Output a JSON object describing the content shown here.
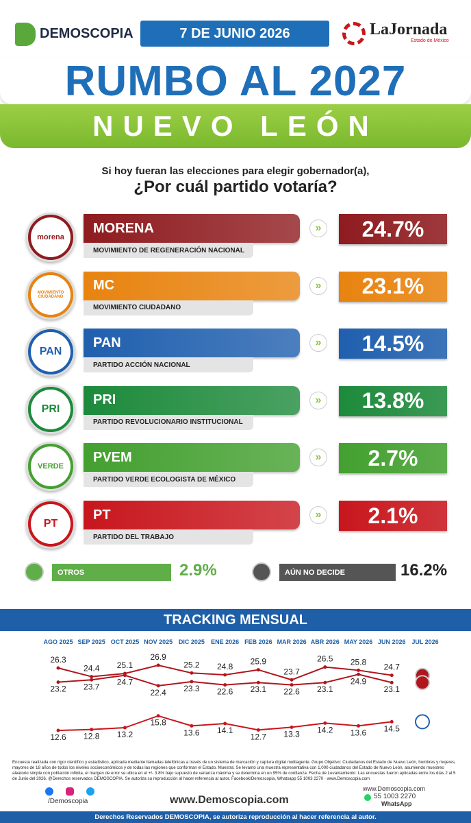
{
  "header": {
    "brand": "DEMOSCOPIA",
    "date": "7 DE JUNIO 2026",
    "partner": "LaJornada",
    "partner_sub": "Estado de México"
  },
  "title": "RUMBO AL 2027",
  "subtitle": "NUEVO LEÓN",
  "question": [
    "Si hoy fueran las elecciones para elegir gobernador(a),",
    "¿Por cuál partido votaría?"
  ],
  "parties": [
    {
      "logo": "morena",
      "name": "MORENA",
      "full_name": "MOVIMIENTO DE REGENERACIÓN NACIONAL",
      "result": "24.7%",
      "color": "#8e1b1f"
    },
    {
      "logo": "MOVIMIENTO CIUDADANO",
      "name": "MC",
      "full_name": "MOVIMIENTO CIUDADANO",
      "result": "23.1%",
      "color": "#e8830f"
    },
    {
      "logo": "PAN",
      "name": "PAN",
      "full_name": "PARTIDO ACCIÓN NACIONAL",
      "result": "14.5%",
      "color": "#1f5fae"
    },
    {
      "logo": "PRI",
      "name": "PRI",
      "full_name": "PARTIDO REVOLUCIONARIO INSTITUCIONAL",
      "result": "13.8%",
      "color": "#1d8a3b"
    },
    {
      "logo": "VERDE",
      "name": "PVEM",
      "full_name": "PARTIDO VERDE ECOLOGISTA DE MÉXICO",
      "result": "2.7%",
      "color": "#43a02f"
    },
    {
      "logo": "PT",
      "name": "PT",
      "full_name": "PARTIDO DEL TRABAJO",
      "result": "2.1%",
      "color": "#c8161d"
    }
  ],
  "others": [
    {
      "label": "OTROS",
      "result": "2.9%",
      "color": "#5fae48"
    },
    {
      "label": "AÚN NO DECIDE",
      "result": "16.2%",
      "color": "#555555"
    }
  ],
  "chart_data": {
    "type": "line",
    "title": "TRACKING MENSUAL",
    "categories": [
      "AGO 2025",
      "SEP 2025",
      "OCT 2025",
      "NOV 2025",
      "DIC 2025",
      "ENE 2026",
      "FEB 2026",
      "MAR 2026",
      "ABR 2026",
      "MAY 2026",
      "JUN 2026",
      "JUL 2026"
    ],
    "series": [
      {
        "color": "#b0161c",
        "values": [
          26.3,
          24.4,
          25.1,
          26.9,
          25.2,
          24.8,
          25.9,
          23.7,
          26.5,
          25.8,
          24.7,
          null
        ]
      },
      {
        "color": "#b0161c",
        "values": [
          23.2,
          23.7,
          24.7,
          22.4,
          23.3,
          22.6,
          23.1,
          22.6,
          23.1,
          24.9,
          23.1,
          null
        ]
      },
      {
        "color": "#c8161d",
        "values": [
          12.6,
          12.8,
          13.2,
          15.8,
          13.6,
          14.1,
          12.7,
          13.3,
          14.2,
          13.6,
          14.5,
          null
        ]
      }
    ]
  },
  "footer": {
    "methodology": "Encuesta realizada con rigor científico y estadístico, aplicada mediante llamadas telefónicas a través de un sistema de marcación y captura digital multiagente. Grupo Objetivo: Ciudadanos del Estado de Nuevo León, hombres y mujeres, mayores de 18 años de todos los niveles socioeconómicos y de todas las regiones que conforman el Estado. Muestra: Se levantó una muestra representativa con 1,000 ciudadanos del Estado de Nuevo León, asumiendo muestreo aleatorio simple con población infinita, el margen de error se ubica en el +/- 3.8% bajo supuesto de varianza máxima y se determina en un 95% de confianza. Fecha de Levantamiento: Las encuestas fueron aplicadas entre los días 2 al 5 de Junio del 2026. @Derechos reservados DEMOSCOPIA. Se autoriza su reproducción al hacer referencia al autor. Facebook/Demoscopia, Whatsapp 55 1003 2270 · www.Demoscopia.com",
    "social": "/Demoscopia",
    "url": "www.Demoscopia.com",
    "website": "www.Demoscopia.com",
    "phone": "55 1003 2270",
    "phone_label": "WhatsApp",
    "rights": "Derechos Reservados DEMOSCOPIA, se autoriza reproducción al hacer referencia al autor."
  }
}
